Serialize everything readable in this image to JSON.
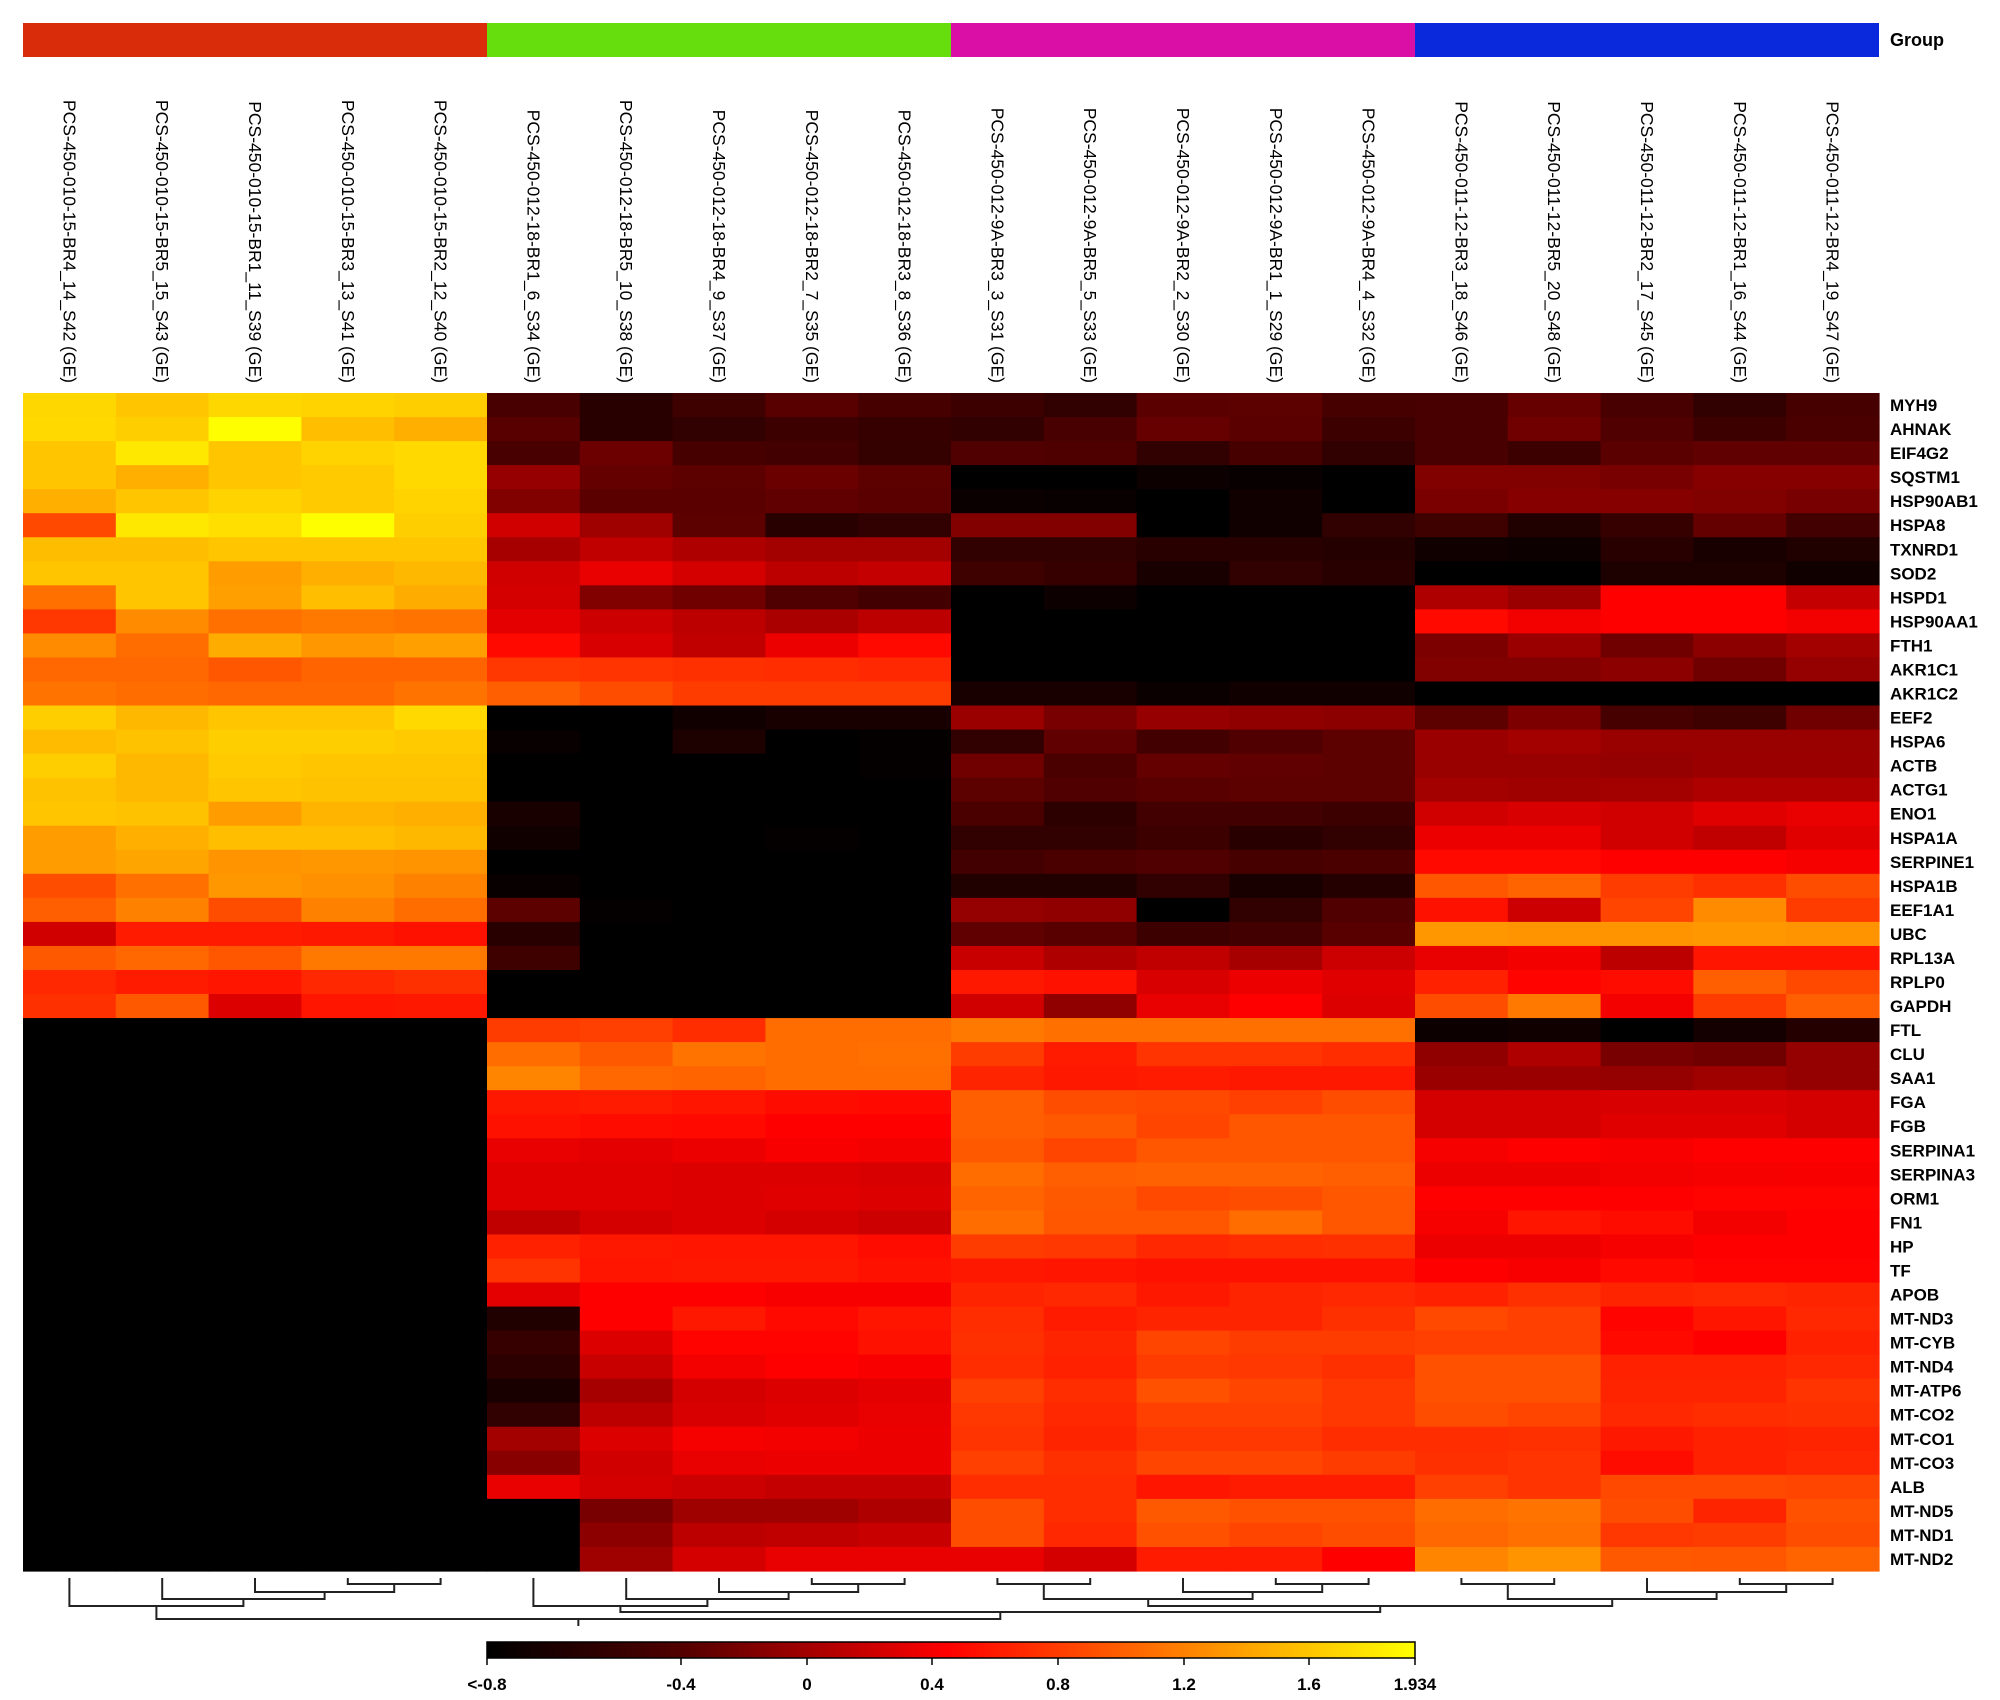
{
  "chart_data": {
    "type": "heatmap",
    "group_legend_label": "Group",
    "groups": [
      {
        "color": "#d82c0a",
        "columns": [
          0,
          1,
          2,
          3,
          4
        ]
      },
      {
        "color": "#66dd0c",
        "columns": [
          5,
          6,
          7,
          8,
          9
        ]
      },
      {
        "color": "#d90fa6",
        "columns": [
          10,
          11,
          12,
          13,
          14
        ]
      },
      {
        "color": "#0a28dc",
        "columns": [
          15,
          16,
          17,
          18,
          19
        ]
      }
    ],
    "columns": [
      "PCS-450-010-15-BR4_14_S42 (GE)",
      "PCS-450-010-15-BR5_15_S43 (GE)",
      "PCS-450-010-15-BR1_11_S39 (GE)",
      "PCS-450-010-15-BR3_13_S41 (GE)",
      "PCS-450-010-15-BR2_12_S40 (GE)",
      "PCS-450-012-18-BR1_6_S34 (GE)",
      "PCS-450-012-18-BR5_10_S38 (GE)",
      "PCS-450-012-18-BR4_9_S37 (GE)",
      "PCS-450-012-18-BR2_7_S35 (GE)",
      "PCS-450-012-18-BR3_8_S36 (GE)",
      "PCS-450-012-9A-BR3_3_S31 (GE)",
      "PCS-450-012-9A-BR5_5_S33 (GE)",
      "PCS-450-012-9A-BR2_2_S30 (GE)",
      "PCS-450-012-9A-BR1_1_S29 (GE)",
      "PCS-450-012-9A-BR4_4_S32 (GE)",
      "PCS-450-011-12-BR3_18_S46 (GE)",
      "PCS-450-011-12-BR5_20_S48 (GE)",
      "PCS-450-011-12-BR2_17_S45 (GE)",
      "PCS-450-011-12-BR1_16_S44 (GE)",
      "PCS-450-011-12-BR4_19_S47 (GE)"
    ],
    "rows": [
      "MYH9",
      "AHNAK",
      "EIF4G2",
      "SQSTM1",
      "HSP90AB1",
      "HSPA8",
      "TXNRD1",
      "SOD2",
      "HSPD1",
      "HSP90AA1",
      "FTH1",
      "AKR1C1",
      "AKR1C2",
      "EEF2",
      "HSPA6",
      "ACTB",
      "ACTG1",
      "ENO1",
      "HSPA1A",
      "SERPINE1",
      "HSPA1B",
      "EEF1A1",
      "UBC",
      "RPL13A",
      "RPLP0",
      "GAPDH",
      "FTL",
      "CLU",
      "SAA1",
      "FGA",
      "FGB",
      "SERPINA1",
      "SERPINA3",
      "ORM1",
      "FN1",
      "HP",
      "TF",
      "APOB",
      "MT-ND3",
      "MT-CYB",
      "MT-ND4",
      "MT-ATP6",
      "MT-CO2",
      "MT-CO1",
      "MT-CO3",
      "ALB",
      "MT-ND5",
      "MT-ND1",
      "MT-ND2"
    ],
    "values": [
      [
        1.7,
        1.6,
        1.7,
        1.68,
        1.65,
        -0.44,
        -0.6,
        -0.49,
        -0.37,
        -0.45,
        -0.5,
        -0.56,
        -0.36,
        -0.35,
        -0.45,
        -0.44,
        -0.3,
        -0.44,
        -0.56,
        -0.45
      ],
      [
        1.71,
        1.65,
        1.93,
        1.56,
        1.47,
        -0.37,
        -0.6,
        -0.56,
        -0.5,
        -0.53,
        -0.56,
        -0.44,
        -0.3,
        -0.36,
        -0.5,
        -0.44,
        -0.25,
        -0.41,
        -0.5,
        -0.43
      ],
      [
        1.6,
        1.8,
        1.6,
        1.68,
        1.71,
        -0.44,
        -0.27,
        -0.45,
        -0.47,
        -0.54,
        -0.41,
        -0.42,
        -0.56,
        -0.45,
        -0.56,
        -0.44,
        -0.5,
        -0.36,
        -0.33,
        -0.33
      ],
      [
        1.6,
        1.47,
        1.6,
        1.63,
        1.71,
        -0.06,
        -0.31,
        -0.35,
        -0.28,
        -0.35,
        -0.8,
        -0.8,
        -0.74,
        -0.76,
        -0.8,
        -0.17,
        -0.17,
        -0.21,
        -0.14,
        -0.14
      ],
      [
        1.47,
        1.6,
        1.68,
        1.63,
        1.68,
        -0.17,
        -0.36,
        -0.36,
        -0.33,
        -0.36,
        -0.75,
        -0.76,
        -0.8,
        -0.72,
        -0.8,
        -0.2,
        -0.14,
        -0.14,
        -0.17,
        -0.21
      ],
      [
        0.87,
        1.8,
        1.75,
        1.93,
        1.65,
        0.22,
        -0.02,
        -0.35,
        -0.6,
        -0.56,
        -0.16,
        -0.16,
        -0.8,
        -0.72,
        -0.56,
        -0.49,
        -0.64,
        -0.53,
        -0.31,
        -0.47
      ],
      [
        1.55,
        1.55,
        1.6,
        1.6,
        1.6,
        0.02,
        0.14,
        0.06,
        0.0,
        0.0,
        -0.56,
        -0.56,
        -0.6,
        -0.6,
        -0.62,
        -0.72,
        -0.74,
        -0.6,
        -0.68,
        -0.64
      ],
      [
        1.6,
        1.6,
        1.36,
        1.47,
        1.52,
        0.22,
        0.34,
        0.24,
        0.12,
        0.16,
        -0.49,
        -0.53,
        -0.68,
        -0.56,
        -0.6,
        -0.8,
        -0.8,
        -0.66,
        -0.66,
        -0.72
      ],
      [
        1.1,
        1.6,
        1.38,
        1.56,
        1.45,
        0.24,
        -0.17,
        -0.25,
        -0.41,
        -0.47,
        -0.8,
        -0.74,
        -0.8,
        -0.8,
        -0.8,
        0.06,
        -0.04,
        0.45,
        0.45,
        0.16
      ],
      [
        0.77,
        1.26,
        1.1,
        1.15,
        1.12,
        0.32,
        0.2,
        0.12,
        0.04,
        0.12,
        -0.8,
        -0.8,
        -0.8,
        -0.8,
        -0.8,
        0.5,
        0.39,
        0.45,
        0.45,
        0.39
      ],
      [
        1.26,
        1.08,
        1.45,
        1.33,
        1.38,
        0.5,
        0.26,
        0.14,
        0.36,
        0.5,
        -0.8,
        -0.8,
        -0.8,
        -0.8,
        -0.8,
        -0.19,
        -0.04,
        -0.25,
        -0.11,
        0.0
      ],
      [
        1.05,
        1.05,
        0.95,
        1.03,
        1.03,
        0.77,
        0.75,
        0.73,
        0.71,
        0.68,
        -0.8,
        -0.8,
        -0.8,
        -0.8,
        -0.8,
        -0.17,
        -0.17,
        -0.11,
        -0.25,
        -0.07
      ],
      [
        1.12,
        1.08,
        1.05,
        1.05,
        1.12,
        1.0,
        0.9,
        0.8,
        0.8,
        0.8,
        -0.68,
        -0.68,
        -0.75,
        -0.72,
        -0.72,
        -0.8,
        -0.8,
        -0.8,
        -0.8,
        -0.8
      ],
      [
        1.65,
        1.52,
        1.6,
        1.6,
        1.71,
        -0.8,
        -0.8,
        -0.72,
        -0.68,
        -0.68,
        -0.04,
        -0.21,
        -0.06,
        -0.09,
        -0.11,
        -0.35,
        -0.19,
        -0.45,
        -0.49,
        -0.25
      ],
      [
        1.54,
        1.58,
        1.65,
        1.65,
        1.63,
        -0.76,
        -0.8,
        -0.66,
        -0.8,
        -0.78,
        -0.56,
        -0.33,
        -0.47,
        -0.41,
        -0.35,
        -0.04,
        0.0,
        -0.05,
        -0.05,
        -0.05
      ],
      [
        1.65,
        1.52,
        1.63,
        1.6,
        1.6,
        -0.8,
        -0.8,
        -0.8,
        -0.8,
        -0.78,
        -0.25,
        -0.43,
        -0.31,
        -0.33,
        -0.35,
        -0.05,
        -0.05,
        -0.07,
        -0.04,
        -0.04
      ],
      [
        1.58,
        1.52,
        1.6,
        1.58,
        1.58,
        -0.8,
        -0.8,
        -0.8,
        -0.8,
        -0.8,
        -0.35,
        -0.41,
        -0.37,
        -0.35,
        -0.35,
        0.0,
        -0.02,
        0.0,
        0.06,
        0.06
      ],
      [
        1.6,
        1.58,
        1.36,
        1.5,
        1.47,
        -0.68,
        -0.8,
        -0.8,
        -0.8,
        -0.8,
        -0.43,
        -0.58,
        -0.47,
        -0.47,
        -0.5,
        0.22,
        0.26,
        0.22,
        0.3,
        0.34
      ],
      [
        1.36,
        1.47,
        1.56,
        1.56,
        1.52,
        -0.72,
        -0.8,
        -0.8,
        -0.78,
        -0.8,
        -0.56,
        -0.56,
        -0.5,
        -0.6,
        -0.56,
        0.36,
        0.36,
        0.22,
        0.14,
        0.3
      ],
      [
        1.36,
        1.41,
        1.31,
        1.33,
        1.31,
        -0.8,
        -0.8,
        -0.8,
        -0.8,
        -0.8,
        -0.47,
        -0.43,
        -0.41,
        -0.45,
        -0.43,
        0.5,
        0.5,
        0.45,
        0.45,
        0.41
      ],
      [
        0.9,
        1.1,
        1.33,
        1.29,
        1.2,
        -0.76,
        -0.8,
        -0.8,
        -0.8,
        -0.8,
        -0.64,
        -0.64,
        -0.56,
        -0.68,
        -0.62,
        0.95,
        1.03,
        0.8,
        0.73,
        0.9
      ],
      [
        1.0,
        1.2,
        0.9,
        1.2,
        1.08,
        -0.35,
        -0.78,
        -0.8,
        -0.8,
        -0.8,
        -0.07,
        -0.09,
        -0.8,
        -0.56,
        -0.41,
        0.55,
        0.2,
        0.85,
        1.26,
        0.8
      ],
      [
        0.22,
        0.61,
        0.61,
        0.59,
        0.55,
        -0.6,
        -0.8,
        -0.8,
        -0.8,
        -0.8,
        -0.33,
        -0.37,
        -0.5,
        -0.47,
        -0.37,
        1.33,
        1.31,
        1.31,
        1.33,
        1.31
      ],
      [
        0.97,
        1.05,
        0.95,
        1.15,
        1.15,
        -0.49,
        -0.8,
        -0.8,
        -0.8,
        -0.8,
        0.18,
        0.06,
        0.14,
        0.02,
        0.2,
        0.34,
        0.39,
        0.12,
        0.57,
        0.57
      ],
      [
        0.68,
        0.61,
        0.57,
        0.68,
        0.73,
        -0.8,
        -0.8,
        -0.8,
        -0.8,
        -0.8,
        0.59,
        0.55,
        0.26,
        0.36,
        0.3,
        0.64,
        0.47,
        0.52,
        1.0,
        0.87
      ],
      [
        0.73,
        0.97,
        0.28,
        0.57,
        0.59,
        -0.8,
        -0.8,
        -0.8,
        -0.8,
        -0.8,
        0.22,
        -0.09,
        0.34,
        0.45,
        0.28,
        0.9,
        1.15,
        0.39,
        0.8,
        1.0
      ],
      [
        -0.8,
        -0.8,
        -0.8,
        -0.8,
        -0.8,
        0.8,
        0.82,
        0.71,
        1.08,
        1.08,
        1.15,
        1.1,
        1.1,
        1.1,
        1.1,
        -0.74,
        -0.72,
        -0.8,
        -0.7,
        -0.62
      ],
      [
        -0.8,
        -0.8,
        -0.8,
        -0.8,
        -0.8,
        1.08,
        0.97,
        1.12,
        1.08,
        1.1,
        0.8,
        0.61,
        0.75,
        0.75,
        0.71,
        -0.09,
        0.06,
        -0.21,
        -0.25,
        -0.07
      ],
      [
        -0.8,
        -0.8,
        -0.8,
        -0.8,
        -0.8,
        1.22,
        1.05,
        1.03,
        1.08,
        1.08,
        0.66,
        0.59,
        0.61,
        0.59,
        0.59,
        -0.04,
        -0.04,
        -0.07,
        -0.02,
        -0.07
      ],
      [
        -0.8,
        -0.8,
        -0.8,
        -0.8,
        -0.8,
        0.59,
        0.61,
        0.57,
        0.52,
        0.5,
        1.0,
        0.9,
        0.87,
        0.82,
        0.9,
        0.24,
        0.24,
        0.26,
        0.26,
        0.24
      ],
      [
        -0.8,
        -0.8,
        -0.8,
        -0.8,
        -0.8,
        0.55,
        0.52,
        0.5,
        0.45,
        0.45,
        1.0,
        0.97,
        0.85,
        0.95,
        0.95,
        0.24,
        0.24,
        0.3,
        0.3,
        0.24
      ],
      [
        -0.8,
        -0.8,
        -0.8,
        -0.8,
        -0.8,
        0.34,
        0.32,
        0.36,
        0.42,
        0.39,
        0.97,
        0.85,
        0.95,
        0.95,
        0.95,
        0.41,
        0.45,
        0.42,
        0.45,
        0.45
      ],
      [
        -0.8,
        -0.8,
        -0.8,
        -0.8,
        -0.8,
        0.3,
        0.3,
        0.28,
        0.28,
        0.26,
        1.08,
        1.0,
        1.02,
        1.02,
        1.0,
        0.36,
        0.36,
        0.39,
        0.41,
        0.42
      ],
      [
        -0.8,
        -0.8,
        -0.8,
        -0.8,
        -0.8,
        0.3,
        0.3,
        0.28,
        0.3,
        0.28,
        1.03,
        0.97,
        0.87,
        0.9,
        0.95,
        0.45,
        0.45,
        0.45,
        0.47,
        0.47
      ],
      [
        -0.8,
        -0.8,
        -0.8,
        -0.8,
        -0.8,
        0.14,
        0.24,
        0.28,
        0.24,
        0.2,
        1.08,
        0.95,
        0.95,
        1.08,
        0.95,
        0.41,
        0.57,
        0.52,
        0.39,
        0.45
      ],
      [
        -0.8,
        -0.8,
        -0.8,
        -0.8,
        -0.8,
        0.64,
        0.59,
        0.57,
        0.57,
        0.52,
        0.8,
        0.77,
        0.68,
        0.71,
        0.73,
        0.36,
        0.36,
        0.41,
        0.45,
        0.45
      ],
      [
        -0.8,
        -0.8,
        -0.8,
        -0.8,
        -0.8,
        0.75,
        0.57,
        0.59,
        0.59,
        0.55,
        0.59,
        0.57,
        0.55,
        0.55,
        0.55,
        0.45,
        0.42,
        0.5,
        0.47,
        0.47
      ],
      [
        -0.8,
        -0.8,
        -0.8,
        -0.8,
        -0.8,
        0.32,
        0.45,
        0.45,
        0.42,
        0.42,
        0.66,
        0.68,
        0.59,
        0.66,
        0.68,
        0.64,
        0.73,
        0.66,
        0.68,
        0.66
      ],
      [
        -0.8,
        -0.8,
        -0.8,
        -0.8,
        -0.8,
        -0.64,
        0.45,
        0.59,
        0.5,
        0.57,
        0.71,
        0.61,
        0.66,
        0.66,
        0.73,
        0.87,
        0.82,
        0.47,
        0.57,
        0.68
      ],
      [
        -0.8,
        -0.8,
        -0.8,
        -0.8,
        -0.8,
        -0.53,
        0.28,
        0.47,
        0.47,
        0.55,
        0.73,
        0.66,
        0.85,
        0.8,
        0.8,
        0.82,
        0.82,
        0.5,
        0.45,
        0.64
      ],
      [
        -0.8,
        -0.8,
        -0.8,
        -0.8,
        -0.8,
        -0.58,
        0.18,
        0.39,
        0.45,
        0.42,
        0.71,
        0.64,
        0.8,
        0.77,
        0.73,
        0.92,
        0.92,
        0.64,
        0.64,
        0.68
      ],
      [
        -0.8,
        -0.8,
        -0.8,
        -0.8,
        -0.8,
        -0.68,
        0.02,
        0.24,
        0.28,
        0.32,
        0.82,
        0.71,
        0.92,
        0.85,
        0.77,
        0.92,
        0.92,
        0.66,
        0.66,
        0.75
      ],
      [
        -0.8,
        -0.8,
        -0.8,
        -0.8,
        -0.8,
        -0.56,
        0.12,
        0.26,
        0.3,
        0.34,
        0.77,
        0.68,
        0.82,
        0.82,
        0.77,
        0.9,
        0.85,
        0.68,
        0.71,
        0.73
      ],
      [
        -0.8,
        -0.8,
        -0.8,
        -0.8,
        -0.8,
        0.0,
        0.28,
        0.41,
        0.39,
        0.36,
        0.75,
        0.66,
        0.77,
        0.77,
        0.71,
        0.71,
        0.73,
        0.59,
        0.64,
        0.66
      ],
      [
        -0.8,
        -0.8,
        -0.8,
        -0.8,
        -0.8,
        -0.13,
        0.22,
        0.34,
        0.36,
        0.36,
        0.82,
        0.73,
        0.85,
        0.85,
        0.8,
        0.73,
        0.75,
        0.52,
        0.64,
        0.68
      ],
      [
        -0.8,
        -0.8,
        -0.8,
        -0.8,
        -0.8,
        0.34,
        0.24,
        0.2,
        0.16,
        0.16,
        0.71,
        0.71,
        0.57,
        0.61,
        0.61,
        0.82,
        0.75,
        0.87,
        0.87,
        0.85
      ],
      [
        -0.8,
        -0.8,
        -0.8,
        -0.8,
        -0.8,
        -0.8,
        -0.21,
        -0.02,
        -0.02,
        0.06,
        0.9,
        0.71,
        0.97,
        0.92,
        0.92,
        1.08,
        1.12,
        0.9,
        0.66,
        0.92
      ],
      [
        -0.8,
        -0.8,
        -0.8,
        -0.8,
        -0.8,
        -0.8,
        -0.11,
        0.12,
        0.14,
        0.18,
        0.9,
        0.68,
        0.92,
        0.85,
        0.9,
        1.05,
        1.1,
        0.77,
        0.8,
        0.9
      ],
      [
        -0.8,
        -0.8,
        -0.8,
        -0.8,
        -0.8,
        -0.8,
        -0.02,
        0.24,
        0.34,
        0.34,
        0.34,
        0.24,
        0.61,
        0.61,
        0.45,
        1.22,
        1.31,
        0.97,
        0.95,
        1.03
      ]
    ],
    "color_scale": {
      "min": -0.8,
      "max": 1.934,
      "colors": [
        "#000000",
        "#ff0000",
        "#ffff00"
      ],
      "tick_values": [
        -0.8,
        -0.4,
        0,
        0.4,
        0.8,
        1.2,
        1.6,
        1.934
      ],
      "tick_labels": [
        "<-0.8",
        "-0.4",
        "0",
        "0.4",
        "0.8",
        "1.2",
        "1.6",
        "1.934"
      ]
    },
    "column_dendrogram": true
  }
}
